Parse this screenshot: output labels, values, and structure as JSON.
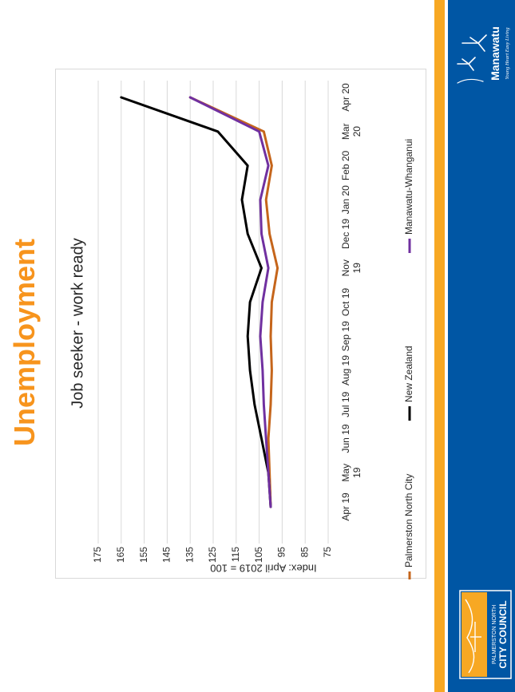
{
  "page": {
    "heading": "Unemployment"
  },
  "branding": {
    "manawatu_name": "Manawatu",
    "manawatu_tagline": "Young Heart Easy Living",
    "council_line1": "PALMERSTON NORTH",
    "council_line2": "CITY COUNCIL",
    "colors": {
      "orange": "#f7a823",
      "blue": "#0056a4"
    }
  },
  "chart_data": {
    "type": "line",
    "title": "Job seeker - work ready",
    "ylabel": "Index: April 2019 = 100",
    "xlabel": "",
    "ylim": [
      75,
      175
    ],
    "yticks": [
      75,
      85,
      95,
      105,
      115,
      125,
      135,
      145,
      155,
      165,
      175
    ],
    "categories": [
      [
        "Apr 19"
      ],
      [
        "May",
        "19"
      ],
      [
        "Jun 19"
      ],
      [
        "Jul 19"
      ],
      [
        "Aug 19"
      ],
      [
        "Sep 19"
      ],
      [
        "Oct 19"
      ],
      [
        "Nov",
        "19"
      ],
      [
        "Dec 19"
      ],
      [
        "Jan 20"
      ],
      [
        "Feb 20"
      ],
      [
        "Mar",
        "20"
      ],
      [
        "Apr 20"
      ]
    ],
    "grid": true,
    "legend_position": "bottom",
    "series": [
      {
        "name": "Palmerston North City",
        "color": "#c5651b",
        "values": [
          100,
          100.5,
          101,
          100,
          99.5,
          100,
          99.5,
          97,
          100.5,
          102,
          99.5,
          103,
          135
        ]
      },
      {
        "name": "New Zealand",
        "color": "#000000",
        "values": [
          100,
          101,
          104,
          107,
          109,
          110,
          109,
          104,
          110,
          112.5,
          110,
          123,
          165
        ]
      },
      {
        "name": "Manawatu-Whanganui",
        "color": "#7030a0",
        "values": [
          100,
          101,
          102,
          103,
          103.5,
          104.5,
          103.5,
          101,
          104,
          104.5,
          101,
          105,
          135
        ]
      }
    ]
  }
}
